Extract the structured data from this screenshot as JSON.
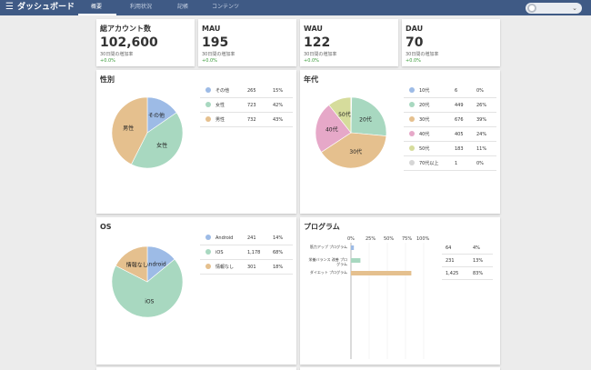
{
  "header": {
    "title": "ダッシュボード",
    "tabs": [
      {
        "label": "概要",
        "active": true
      },
      {
        "label": "利用状況",
        "active": false
      },
      {
        "label": "記帳",
        "active": false
      },
      {
        "label": "コンテンツ",
        "active": false
      }
    ],
    "menu_icon": "hamburger-icon",
    "avatar_icon": "user-icon",
    "chevron_icon": "chevron-down-icon"
  },
  "stats": [
    {
      "label": "総アカウント数",
      "value": "102,600",
      "sub": "30日間の増加率",
      "growth": "+0.0%"
    },
    {
      "label": "MAU",
      "value": "195",
      "sub": "30日間の増加率",
      "growth": "+0.0%"
    },
    {
      "label": "WAU",
      "value": "122",
      "sub": "30日間の増加率",
      "growth": "+0.0%"
    },
    {
      "label": "DAU",
      "value": "70",
      "sub": "30日間の増加率",
      "growth": "+0.0%"
    }
  ],
  "colors": {
    "header": "#3f5a85",
    "blue": "#9dbbe6",
    "green": "#a8d8c0",
    "tan": "#e5c08e",
    "pink": "#e6a8c8",
    "olive": "#d6dc9c",
    "grey": "#d6d6d6",
    "growth": "#3a9a3a"
  },
  "gender": {
    "title": "性別",
    "chart_data": {
      "type": "pie",
      "slices": [
        {
          "label": "その他",
          "count": "265",
          "pct": "15%",
          "value": 265,
          "color": "#9dbbe6"
        },
        {
          "label": "女性",
          "count": "723",
          "pct": "42%",
          "value": 723,
          "color": "#a8d8c0"
        },
        {
          "label": "男性",
          "count": "732",
          "pct": "43%",
          "value": 732,
          "color": "#e5c08e"
        }
      ]
    }
  },
  "age": {
    "title": "年代",
    "chart_data": {
      "type": "pie",
      "slices": [
        {
          "label": "10代",
          "count": "6",
          "pct": "0%",
          "value": 6,
          "color": "#9dbbe6",
          "show": false
        },
        {
          "label": "20代",
          "count": "449",
          "pct": "26%",
          "value": 449,
          "color": "#a8d8c0",
          "show": true
        },
        {
          "label": "30代",
          "count": "676",
          "pct": "39%",
          "value": 676,
          "color": "#e5c08e",
          "show": true
        },
        {
          "label": "40代",
          "count": "405",
          "pct": "24%",
          "value": 405,
          "color": "#e6a8c8",
          "show": true
        },
        {
          "label": "50代",
          "count": "183",
          "pct": "11%",
          "value": 183,
          "color": "#d6dc9c",
          "show": true
        },
        {
          "label": "70代以上",
          "count": "1",
          "pct": "0%",
          "value": 1,
          "color": "#d6d6d6",
          "show": false
        }
      ]
    }
  },
  "os": {
    "title": "OS",
    "chart_data": {
      "type": "pie",
      "slices": [
        {
          "label": "Android",
          "count": "241",
          "pct": "14%",
          "value": 241,
          "color": "#9dbbe6"
        },
        {
          "label": "iOS",
          "count": "1,178",
          "pct": "68%",
          "value": 1178,
          "color": "#a8d8c0"
        },
        {
          "label": "情報なし",
          "count": "301",
          "pct": "18%",
          "value": 301,
          "color": "#e5c08e"
        }
      ]
    }
  },
  "program": {
    "title": "プログラム",
    "chart_data": {
      "type": "bar",
      "orientation": "horizontal",
      "xlim": [
        0,
        100
      ],
      "ticks": [
        "0%",
        "25%",
        "50%",
        "75%",
        "100%"
      ],
      "rows": [
        {
          "label": "筋力アップ プログラム",
          "count": "64",
          "pct": "4%",
          "value": 4,
          "color": "#9dbbe6"
        },
        {
          "label": "栄養バランス 改善 プログラム",
          "count": "231",
          "pct": "13%",
          "value": 13,
          "color": "#a8d8c0"
        },
        {
          "label": "ダイエット プログラム",
          "count": "1,425",
          "pct": "83%",
          "value": 83,
          "color": "#e5c08e"
        }
      ]
    }
  }
}
